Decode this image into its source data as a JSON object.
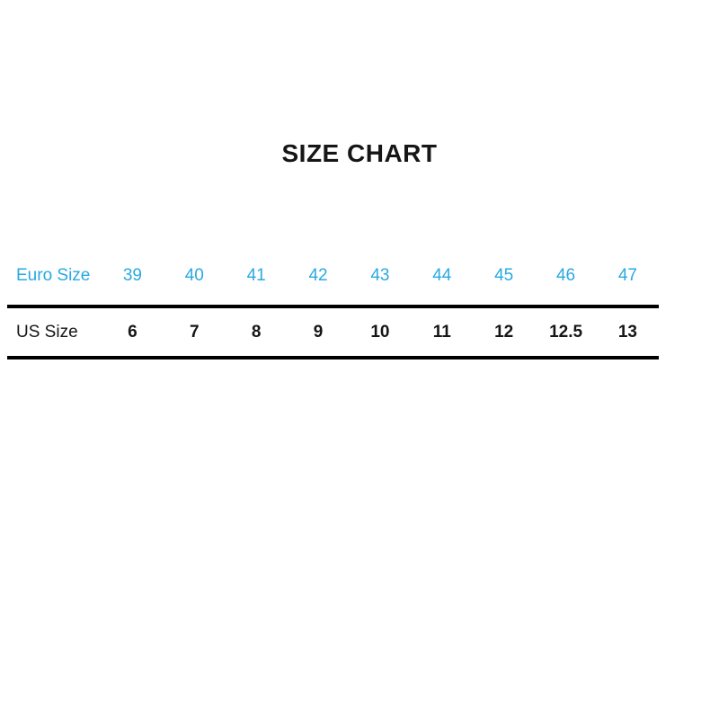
{
  "title": "SIZE CHART",
  "colors": {
    "accent_blue": "#29a9e1",
    "text_black": "#161616",
    "rule_black": "#000000",
    "background": "#ffffff"
  },
  "chart_data": {
    "type": "table",
    "title": "SIZE CHART",
    "rows": [
      {
        "label": "Euro Size",
        "values": [
          "39",
          "40",
          "41",
          "42",
          "43",
          "44",
          "45",
          "46",
          "47"
        ]
      },
      {
        "label": "US Size",
        "values": [
          "6",
          "7",
          "8",
          "9",
          "10",
          "11",
          "12",
          "12.5",
          "13"
        ]
      }
    ],
    "layout_hints": {
      "euro_row_color": "#29a9e1",
      "us_row_color": "#161616",
      "dividers": "thick black horizontal rules below each... between rows and below last row",
      "grid": "off"
    }
  }
}
